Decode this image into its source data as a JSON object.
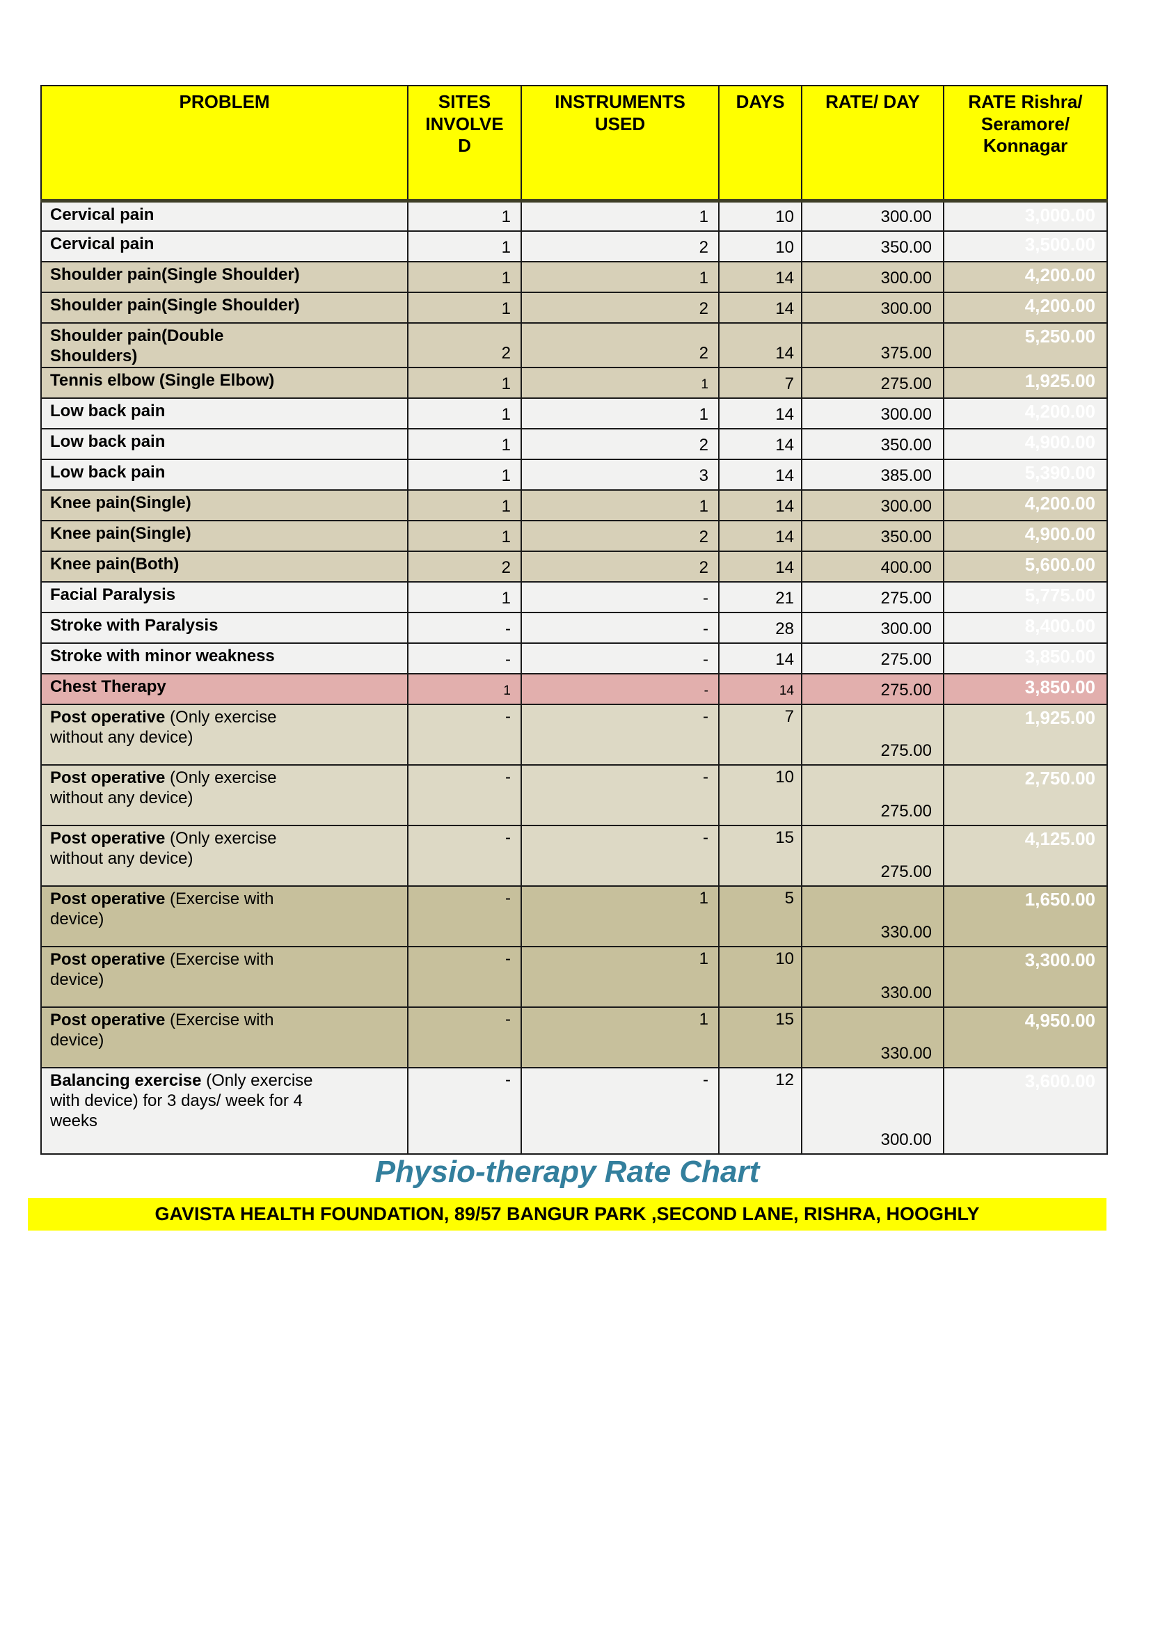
{
  "title": "Physio-therapy Rate Chart",
  "banner": "GAVISTA HEALTH FOUNDATION, 89/57 BANGUR PARK ,SECOND LANE, RISHRA, HOOGHLY",
  "colors": {
    "header_bg": "#FFFF00",
    "rate_column_bg": "#47AAC6",
    "rate_column_text": "#FFFFFF",
    "row_gray": "#F2F2F1",
    "row_tan": "#D7D0B8",
    "row_tan_light": "#DDD9C5",
    "row_khaki": "#C7C09C",
    "row_pink": "#E2AFAD",
    "title_color": "#337F9D",
    "banner_bg": "#FFFF00"
  },
  "header": {
    "columns": [
      "PROBLEM",
      "SITES\nINVOLVE\nD",
      "INSTRUMENTS\nUSED",
      "DAYS",
      "RATE/ DAY",
      "RATE Rishra/\nSeramore/\nKonnagar"
    ]
  },
  "rows": [
    {
      "problem_bold": "Cervical pain",
      "problem_rest": "",
      "sites": "1",
      "instruments": "1",
      "days": "10",
      "rate_day": "300.00",
      "rate": "3,000.00",
      "theme": "gray",
      "h": 44
    },
    {
      "problem_bold": "Cervical pain",
      "problem_rest": "",
      "sites": "1",
      "instruments": "2",
      "days": "10",
      "rate_day": "350.00",
      "rate": "3,500.00",
      "theme": "gray",
      "h": 44
    },
    {
      "problem_bold": "Shoulder pain(Single Shoulder)",
      "problem_rest": "",
      "sites": "1",
      "instruments": "1",
      "days": "14",
      "rate_day": "300.00",
      "rate": "4,200.00",
      "theme": "tan",
      "h": 44
    },
    {
      "problem_bold": "Shoulder pain(Single Shoulder)",
      "problem_rest": "",
      "sites": "1",
      "instruments": "2",
      "days": "14",
      "rate_day": "300.00",
      "rate": "4,200.00",
      "theme": "tan",
      "h": 44
    },
    {
      "problem_bold": "Shoulder pain(Double\nShoulders)",
      "problem_rest": "",
      "sites": "2",
      "instruments": "2",
      "days": "14",
      "rate_day": "375.00",
      "rate": "5,250.00",
      "theme": "tan",
      "h": 63
    },
    {
      "problem_bold": "Tennis elbow (Single Elbow)",
      "problem_rest": "",
      "sites": "1",
      "instruments": "1",
      "days": "7",
      "rate_day": "275.00",
      "rate": "1,925.00",
      "theme": "tan",
      "h": 44,
      "small": [
        "instruments"
      ]
    },
    {
      "problem_bold": "Low back pain",
      "problem_rest": "",
      "sites": "1",
      "instruments": "1",
      "days": "14",
      "rate_day": "300.00",
      "rate": "4,200.00",
      "theme": "gray",
      "h": 44
    },
    {
      "problem_bold": "Low back pain",
      "problem_rest": "",
      "sites": "1",
      "instruments": "2",
      "days": "14",
      "rate_day": "350.00",
      "rate": "4,900.00",
      "theme": "gray",
      "h": 44
    },
    {
      "problem_bold": "Low back pain",
      "problem_rest": "",
      "sites": "1",
      "instruments": "3",
      "days": "14",
      "rate_day": "385.00",
      "rate": "5,390.00",
      "theme": "gray",
      "h": 44
    },
    {
      "problem_bold": "Knee pain(Single)",
      "problem_rest": "",
      "sites": "1",
      "instruments": "1",
      "days": "14",
      "rate_day": "300.00",
      "rate": "4,200.00",
      "theme": "tan",
      "h": 44
    },
    {
      "problem_bold": "Knee pain(Single)",
      "problem_rest": "",
      "sites": "1",
      "instruments": "2",
      "days": "14",
      "rate_day": "350.00",
      "rate": "4,900.00",
      "theme": "tan",
      "h": 44
    },
    {
      "problem_bold": "Knee pain(Both)",
      "problem_rest": "",
      "sites": "2",
      "instruments": "2",
      "days": "14",
      "rate_day": "400.00",
      "rate": "5,600.00",
      "theme": "tan",
      "h": 44
    },
    {
      "problem_bold": "Facial Paralysis",
      "problem_rest": "",
      "sites": "1",
      "instruments": "-",
      "days": "21",
      "rate_day": "275.00",
      "rate": "5,775.00",
      "theme": "gray",
      "h": 44
    },
    {
      "problem_bold": "Stroke with Paralysis",
      "problem_rest": "",
      "sites": "-",
      "instruments": "-",
      "days": "28",
      "rate_day": "300.00",
      "rate": "8,400.00",
      "theme": "gray",
      "h": 44
    },
    {
      "problem_bold": "Stroke with minor weakness",
      "problem_rest": "",
      "sites": "-",
      "instruments": "-",
      "days": "14",
      "rate_day": "275.00",
      "rate": "3,850.00",
      "theme": "gray",
      "h": 44
    },
    {
      "problem_bold": "Chest Therapy",
      "problem_rest": "",
      "sites": "1",
      "instruments": "-",
      "days": "14",
      "rate_day": "275.00",
      "rate": "3,850.00",
      "theme": "pink",
      "h": 44,
      "small": [
        "sites",
        "instruments",
        "days"
      ]
    },
    {
      "problem_bold": "Post operative",
      "problem_rest": " (Only exercise\nwithout any device)",
      "sites": "-",
      "instruments": "-",
      "days": "7",
      "rate_day": "275.00",
      "rate": "1,925.00",
      "theme": "tanlight",
      "h": 87,
      "numtop": true
    },
    {
      "problem_bold": "Post operative",
      "problem_rest": " (Only exercise\nwithout any device)",
      "sites": "-",
      "instruments": "-",
      "days": "10",
      "rate_day": "275.00",
      "rate": "2,750.00",
      "theme": "tanlight",
      "h": 87,
      "numtop": true
    },
    {
      "problem_bold": "Post operative",
      "problem_rest": " (Only exercise\nwithout any device)",
      "sites": "-",
      "instruments": "-",
      "days": "15",
      "rate_day": "275.00",
      "rate": "4,125.00",
      "theme": "tanlight",
      "h": 87,
      "numtop": true
    },
    {
      "problem_bold": "Post operative",
      "problem_rest": " (Exercise with\ndevice)",
      "sites": "-",
      "instruments": "1",
      "days": "5",
      "rate_day": "330.00",
      "rate": "1,650.00",
      "theme": "khaki",
      "h": 87,
      "numtop": true
    },
    {
      "problem_bold": "Post operative",
      "problem_rest": " (Exercise with\ndevice)",
      "sites": "-",
      "instruments": "1",
      "days": "10",
      "rate_day": "330.00",
      "rate": "3,300.00",
      "theme": "khaki",
      "h": 87,
      "numtop": true
    },
    {
      "problem_bold": "Post operative",
      "problem_rest": " (Exercise with\ndevice)",
      "sites": "-",
      "instruments": "1",
      "days": "15",
      "rate_day": "330.00",
      "rate": "4,950.00",
      "theme": "khaki",
      "h": 87,
      "numtop": true
    },
    {
      "problem_bold": "Balancing exercise",
      "problem_rest": " (Only exercise\nwith device) for 3 days/ week for 4\nweeks",
      "sites": "-",
      "instruments": "-",
      "days": "12",
      "rate_day": "300.00",
      "rate": "3,600.00",
      "theme": "gray",
      "h": 124,
      "numtop": true
    }
  ]
}
